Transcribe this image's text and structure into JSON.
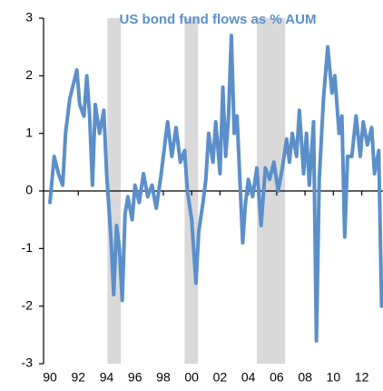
{
  "chart_data": {
    "type": "line",
    "title": "US bond fund flows  as % AUM",
    "x": [
      1990.0,
      1990.3,
      1990.6,
      1990.9,
      1991.1,
      1991.4,
      1991.7,
      1991.9,
      1992.1,
      1992.4,
      1992.6,
      1992.8,
      1993.0,
      1993.2,
      1993.5,
      1993.8,
      1994.0,
      1994.3,
      1994.5,
      1994.7,
      1994.9,
      1995.1,
      1995.3,
      1995.5,
      1995.8,
      1996.0,
      1996.3,
      1996.6,
      1996.9,
      1997.2,
      1997.5,
      1997.8,
      1998.0,
      1998.3,
      1998.6,
      1998.9,
      1999.2,
      1999.5,
      1999.7,
      2000.0,
      2000.3,
      2000.5,
      2000.8,
      2001.0,
      2001.2,
      2001.5,
      2001.7,
      2002.0,
      2002.2,
      2002.4,
      2002.6,
      2002.8,
      2003.0,
      2003.2,
      2003.4,
      2003.6,
      2003.8,
      2004.0,
      2004.3,
      2004.6,
      2004.9,
      2005.2,
      2005.5,
      2005.8,
      2006.1,
      2006.4,
      2006.7,
      2006.9,
      2007.1,
      2007.4,
      2007.6,
      2007.9,
      2008.1,
      2008.3,
      2008.6,
      2008.8,
      2009.0,
      2009.3,
      2009.6,
      2009.9,
      2010.1,
      2010.4,
      2010.6,
      2010.8,
      2011.0,
      2011.3,
      2011.6,
      2011.9,
      2012.1,
      2012.4,
      2012.7,
      2012.9,
      2013.2,
      2013.4
    ],
    "values": [
      -0.2,
      0.6,
      0.3,
      0.1,
      1.0,
      1.6,
      1.9,
      2.1,
      1.5,
      1.3,
      2.0,
      1.3,
      0.1,
      1.5,
      1.0,
      1.4,
      0.3,
      -0.8,
      -1.8,
      -0.6,
      -1.0,
      -1.9,
      -0.4,
      -0.1,
      -0.5,
      0.1,
      -0.2,
      0.3,
      -0.1,
      0.1,
      -0.3,
      0.2,
      0.6,
      1.2,
      0.6,
      1.1,
      0.5,
      0.7,
      0.0,
      -0.5,
      -1.6,
      -0.7,
      -0.2,
      0.2,
      1.0,
      0.5,
      1.2,
      0.3,
      1.8,
      0.6,
      1.3,
      2.7,
      1.0,
      1.3,
      0.2,
      -0.9,
      -0.2,
      0.2,
      -0.1,
      0.4,
      -0.6,
      0.4,
      0.2,
      0.5,
      0.0,
      0.4,
      0.9,
      0.5,
      1.0,
      0.6,
      1.4,
      0.3,
      1.0,
      0.1,
      1.2,
      -2.6,
      0.2,
      1.6,
      2.5,
      1.7,
      2.0,
      1.0,
      1.3,
      -0.8,
      0.6,
      0.6,
      1.3,
      0.6,
      1.2,
      0.8,
      1.1,
      0.3,
      0.7,
      -2.0
    ],
    "color": "#5b8fc9",
    "shaded_periods": [
      [
        1994.05,
        1995.0
      ],
      [
        1999.5,
        2000.45
      ],
      [
        2004.6,
        2006.6
      ]
    ],
    "shade_color": "#d9d9d9",
    "xlim": [
      1989.55,
      2013.5
    ],
    "xticks": [
      {
        "value": 1990,
        "label": "90"
      },
      {
        "value": 1992,
        "label": "92"
      },
      {
        "value": 1994,
        "label": "94"
      },
      {
        "value": 1996,
        "label": "96"
      },
      {
        "value": 1998,
        "label": "98"
      },
      {
        "value": 2000,
        "label": "00"
      },
      {
        "value": 2002,
        "label": "02"
      },
      {
        "value": 2004,
        "label": "04"
      },
      {
        "value": 2006,
        "label": "06"
      },
      {
        "value": 2008,
        "label": "08"
      },
      {
        "value": 2010,
        "label": "10"
      },
      {
        "value": 2012,
        "label": "12"
      }
    ],
    "ylim": [
      -3,
      3
    ],
    "yticks": [
      -3,
      -2,
      -1,
      0,
      1,
      2,
      3
    ]
  }
}
